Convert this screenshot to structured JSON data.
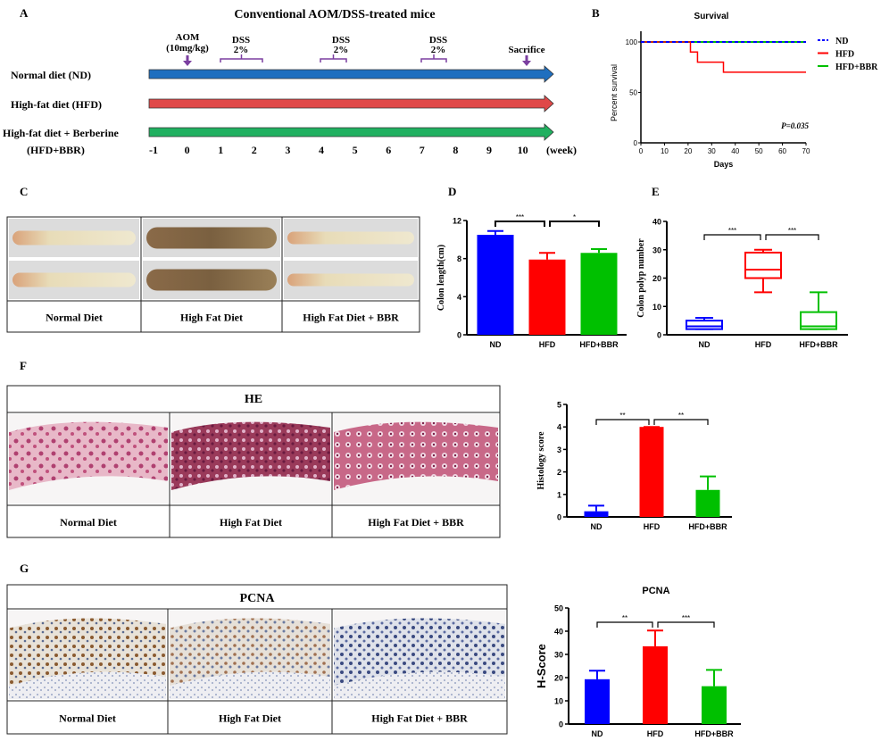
{
  "panel_labels": [
    "A",
    "B",
    "C",
    "D",
    "E",
    "F",
    "G"
  ],
  "panel_a": {
    "title": "Conventional AOM/DSS-treated mice",
    "groups": [
      {
        "label": "Normal diet (ND)",
        "color": "#1f6fbf"
      },
      {
        "label": "High-fat diet (HFD)",
        "color": "#e04848"
      },
      {
        "label_line1": "High-fat diet + Berberine",
        "label_line2": "(HFD+BBR)",
        "color": "#20b060"
      }
    ],
    "weeks": [
      "-1",
      "0",
      "1",
      "2",
      "3",
      "4",
      "5",
      "6",
      "7",
      "8",
      "9",
      "10"
    ],
    "week_unit": "(week)",
    "aom_line1": "AOM",
    "aom_line2": "(10mg/kg)",
    "dss": [
      {
        "l1": "DSS",
        "l2": "2%"
      },
      {
        "l1": "DSS",
        "l2": "2%"
      },
      {
        "l1": "DSS",
        "l2": "2%"
      }
    ],
    "sacrifice": "Sacrifice",
    "marker_color": "#7b3fa0"
  },
  "panel_c": {
    "labels": [
      "Normal Diet",
      "High Fat Diet",
      "High Fat Diet + BBR"
    ]
  },
  "panel_f": {
    "title": "HE",
    "labels": [
      "Normal Diet",
      "High Fat Diet",
      "High Fat Diet + BBR"
    ]
  },
  "panel_g": {
    "title": "PCNA",
    "labels": [
      "Normal Diet",
      "High Fat Diet",
      "High Fat Diet + BBR"
    ]
  },
  "colors": {
    "ND": "#0000ff",
    "HFD": "#ff0000",
    "HFD+BBR": "#00c000"
  },
  "chart_data": [
    {
      "type": "line",
      "title": "Survival",
      "xlabel": "Days",
      "ylabel": "Percent survival",
      "xlim": [
        0,
        70
      ],
      "ylim": [
        0,
        100
      ],
      "xticks": [
        "0",
        "10",
        "20",
        "30",
        "40",
        "50",
        "60",
        "70"
      ],
      "yticks": [
        "0",
        "50",
        "100"
      ],
      "legend": "right",
      "annotation": "P=0.035",
      "series": [
        {
          "name": "ND",
          "points": [
            [
              0,
              100
            ],
            [
              70,
              100
            ]
          ],
          "style": "dashed"
        },
        {
          "name": "HFD",
          "points": [
            [
              0,
              100
            ],
            [
              21,
              100
            ],
            [
              21,
              90
            ],
            [
              24,
              90
            ],
            [
              24,
              80
            ],
            [
              35,
              80
            ],
            [
              35,
              70
            ],
            [
              70,
              70
            ]
          ],
          "style": "step"
        },
        {
          "name": "HFD+BBR",
          "points": [
            [
              0,
              100
            ],
            [
              70,
              100
            ]
          ],
          "style": "solid"
        }
      ]
    },
    {
      "type": "bar",
      "ylabel": "Colon length(cm)",
      "ylim": [
        0,
        12
      ],
      "yticks": [
        "0",
        "4",
        "8",
        "12"
      ],
      "categories": [
        "ND",
        "HFD",
        "HFD+BBR"
      ],
      "values": [
        10.5,
        7.9,
        8.6
      ],
      "error_upper": [
        10.9,
        8.6,
        9.0
      ],
      "significance": [
        {
          "from": 0,
          "to": 1,
          "label": "***"
        },
        {
          "from": 1,
          "to": 2,
          "label": "*"
        }
      ]
    },
    {
      "type": "box",
      "ylabel": "Colon polyp number",
      "ylim": [
        0,
        40
      ],
      "yticks": [
        "0",
        "10",
        "20",
        "30",
        "40"
      ],
      "categories": [
        "ND",
        "HFD",
        "HFD+BBR"
      ],
      "boxes": [
        {
          "min": 2,
          "q1": 2,
          "median": 3,
          "q3": 5,
          "max": 6
        },
        {
          "min": 15,
          "q1": 20,
          "median": 23,
          "q3": 29,
          "max": 30
        },
        {
          "min": 2,
          "q1": 2,
          "median": 3,
          "q3": 8,
          "max": 15
        }
      ],
      "significance": [
        {
          "from": 0,
          "to": 1,
          "label": "***"
        },
        {
          "from": 1,
          "to": 2,
          "label": "***"
        }
      ]
    },
    {
      "type": "bar",
      "ylabel": "Histology score",
      "ylim": [
        0,
        5
      ],
      "yticks": [
        "0",
        "1",
        "2",
        "3",
        "4",
        "5"
      ],
      "categories": [
        "ND",
        "HFD",
        "HFD+BBR"
      ],
      "values": [
        0.25,
        4.0,
        1.2
      ],
      "error_upper": [
        0.5,
        4.0,
        1.8
      ],
      "significance": [
        {
          "from": 0,
          "to": 1,
          "label": "**"
        },
        {
          "from": 1,
          "to": 2,
          "label": "**"
        }
      ]
    },
    {
      "type": "bar",
      "title": "PCNA",
      "ylabel": "H-Score",
      "ylim": [
        0,
        50
      ],
      "yticks": [
        "0",
        "10",
        "20",
        "30",
        "40",
        "50"
      ],
      "categories": [
        "ND",
        "HFD",
        "HFD+BBR"
      ],
      "values": [
        19.3,
        33.5,
        16.3
      ],
      "error_upper": [
        23.0,
        40.3,
        23.3
      ],
      "significance": [
        {
          "from": 0,
          "to": 1,
          "label": "**"
        },
        {
          "from": 1,
          "to": 2,
          "label": "***"
        }
      ]
    }
  ]
}
